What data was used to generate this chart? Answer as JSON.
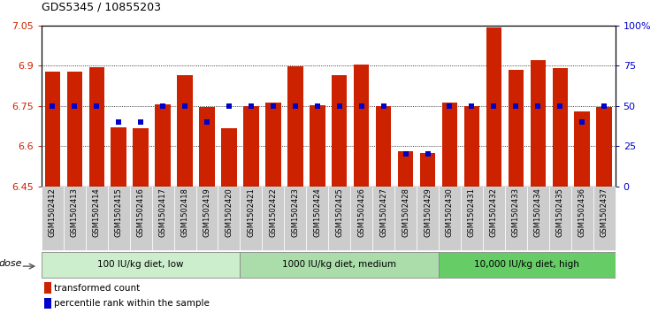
{
  "title": "GDS5345 / 10855203",
  "samples": [
    "GSM1502412",
    "GSM1502413",
    "GSM1502414",
    "GSM1502415",
    "GSM1502416",
    "GSM1502417",
    "GSM1502418",
    "GSM1502419",
    "GSM1502420",
    "GSM1502421",
    "GSM1502422",
    "GSM1502423",
    "GSM1502424",
    "GSM1502425",
    "GSM1502426",
    "GSM1502427",
    "GSM1502428",
    "GSM1502429",
    "GSM1502430",
    "GSM1502431",
    "GSM1502432",
    "GSM1502433",
    "GSM1502434",
    "GSM1502435",
    "GSM1502436",
    "GSM1502437"
  ],
  "bar_values": [
    6.878,
    6.878,
    6.895,
    6.67,
    6.667,
    6.755,
    6.865,
    6.745,
    6.667,
    6.75,
    6.762,
    6.898,
    6.753,
    6.865,
    6.905,
    6.748,
    6.58,
    6.575,
    6.762,
    6.75,
    7.045,
    6.885,
    6.92,
    6.89,
    6.728,
    6.747
  ],
  "percentile_values": [
    50,
    50,
    50,
    40,
    40,
    50,
    50,
    40,
    50,
    50,
    50,
    50,
    50,
    50,
    50,
    50,
    20,
    20,
    50,
    50,
    50,
    50,
    50,
    50,
    40,
    50
  ],
  "ymin": 6.45,
  "ymax": 7.05,
  "yticks": [
    6.45,
    6.6,
    6.75,
    6.9,
    7.05
  ],
  "ytick_labels": [
    "6.45",
    "6.6",
    "6.75",
    "6.9",
    "7.05"
  ],
  "gridlines": [
    6.6,
    6.75,
    6.9
  ],
  "right_yticks": [
    0,
    25,
    50,
    75,
    100
  ],
  "right_ytick_labels": [
    "0",
    "25",
    "50",
    "75",
    "100%"
  ],
  "bar_color": "#cc2200",
  "dot_color": "#0000cc",
  "groups": [
    {
      "label": "100 IU/kg diet, low",
      "start": 0,
      "end": 9,
      "color": "#cceecc"
    },
    {
      "label": "1000 IU/kg diet, medium",
      "start": 9,
      "end": 18,
      "color": "#aaddaa"
    },
    {
      "label": "10,000 IU/kg diet, high",
      "start": 18,
      "end": 26,
      "color": "#66cc66"
    }
  ],
  "dose_label": "dose",
  "tick_bg_color": "#cccccc",
  "legend_items": [
    {
      "label": "transformed count",
      "color": "#cc2200"
    },
    {
      "label": "percentile rank within the sample",
      "color": "#0000cc"
    }
  ]
}
